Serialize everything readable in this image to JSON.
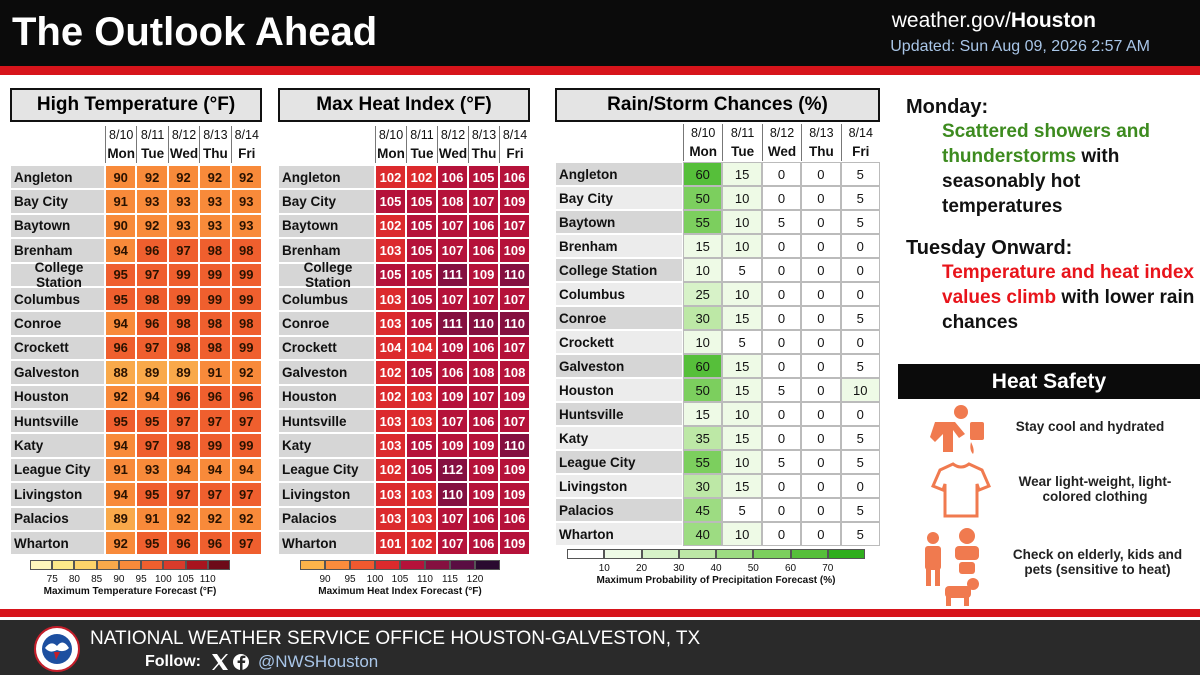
{
  "header": {
    "title": "The Outlook Ahead",
    "site_prefix": "weather.gov/",
    "site_name": "Houston",
    "updated": "Updated: Sun Aug 09, 2026 2:57 AM"
  },
  "tables": [
    {
      "title": "High Temperature (°F)",
      "dates": [
        "8/10",
        "8/11",
        "8/12",
        "8/13",
        "8/14"
      ],
      "days": [
        "Mon",
        "Tue",
        "Wed",
        "Thu",
        "Fri"
      ],
      "text_color": "#2a1200",
      "rows": [
        {
          "name": "Angleton",
          "values": [
            90,
            92,
            92,
            92,
            92
          ]
        },
        {
          "name": "Bay City",
          "values": [
            91,
            93,
            93,
            93,
            93
          ]
        },
        {
          "name": "Baytown",
          "values": [
            90,
            92,
            93,
            93,
            93
          ]
        },
        {
          "name": "Brenham",
          "values": [
            94,
            96,
            97,
            98,
            98
          ]
        },
        {
          "name": "College Station",
          "values": [
            95,
            97,
            99,
            99,
            99
          ]
        },
        {
          "name": "Columbus",
          "values": [
            95,
            98,
            99,
            99,
            99
          ]
        },
        {
          "name": "Conroe",
          "values": [
            94,
            96,
            98,
            98,
            98
          ]
        },
        {
          "name": "Crockett",
          "values": [
            96,
            97,
            98,
            98,
            99
          ]
        },
        {
          "name": "Galveston",
          "values": [
            88,
            89,
            89,
            91,
            92
          ]
        },
        {
          "name": "Houston",
          "values": [
            92,
            94,
            96,
            96,
            96
          ]
        },
        {
          "name": "Huntsville",
          "values": [
            95,
            95,
            97,
            97,
            97
          ]
        },
        {
          "name": "Katy",
          "values": [
            94,
            97,
            98,
            99,
            99
          ]
        },
        {
          "name": "League City",
          "values": [
            91,
            93,
            94,
            94,
            94
          ]
        },
        {
          "name": "Livingston",
          "values": [
            94,
            95,
            97,
            97,
            97
          ]
        },
        {
          "name": "Palacios",
          "values": [
            89,
            91,
            92,
            92,
            92
          ]
        },
        {
          "name": "Wharton",
          "values": [
            92,
            95,
            96,
            96,
            97
          ]
        }
      ],
      "legend": {
        "ticks": [
          75,
          80,
          85,
          90,
          95,
          100,
          105,
          110
        ],
        "colors": [
          "#fff7bc",
          "#fee98a",
          "#fdd36a",
          "#f9a94a",
          "#f88a3a",
          "#ef5f2e",
          "#d93b2b",
          "#a8141e",
          "#6d0a18"
        ],
        "label": "Maximum Temperature Forecast (°F)"
      }
    },
    {
      "title": "Max Heat Index (°F)",
      "dates": [
        "8/10",
        "8/11",
        "8/12",
        "8/13",
        "8/14"
      ],
      "days": [
        "Mon",
        "Tue",
        "Wed",
        "Thu",
        "Fri"
      ],
      "text_color": "#ffffff",
      "rows": [
        {
          "name": "Angleton",
          "values": [
            102,
            102,
            106,
            105,
            106
          ]
        },
        {
          "name": "Bay City",
          "values": [
            105,
            105,
            108,
            107,
            109
          ]
        },
        {
          "name": "Baytown",
          "values": [
            102,
            105,
            107,
            106,
            107
          ]
        },
        {
          "name": "Brenham",
          "values": [
            103,
            105,
            107,
            106,
            109
          ]
        },
        {
          "name": "College Station",
          "values": [
            105,
            105,
            111,
            109,
            110
          ]
        },
        {
          "name": "Columbus",
          "values": [
            103,
            105,
            107,
            107,
            107
          ]
        },
        {
          "name": "Conroe",
          "values": [
            103,
            105,
            111,
            110,
            110
          ]
        },
        {
          "name": "Crockett",
          "values": [
            104,
            104,
            109,
            106,
            107
          ]
        },
        {
          "name": "Galveston",
          "values": [
            102,
            105,
            106,
            108,
            108
          ]
        },
        {
          "name": "Houston",
          "values": [
            102,
            103,
            109,
            107,
            109
          ]
        },
        {
          "name": "Huntsville",
          "values": [
            103,
            103,
            107,
            106,
            107
          ]
        },
        {
          "name": "Katy",
          "values": [
            103,
            105,
            109,
            109,
            110
          ]
        },
        {
          "name": "League City",
          "values": [
            102,
            105,
            112,
            109,
            109
          ]
        },
        {
          "name": "Livingston",
          "values": [
            103,
            103,
            110,
            109,
            109
          ]
        },
        {
          "name": "Palacios",
          "values": [
            103,
            103,
            107,
            106,
            106
          ]
        },
        {
          "name": "Wharton",
          "values": [
            101,
            102,
            107,
            106,
            109
          ]
        }
      ],
      "legend": {
        "ticks": [
          90,
          95,
          100,
          105,
          110,
          115,
          120
        ],
        "colors": [
          "#fdb44a",
          "#fb8c3c",
          "#f0592f",
          "#dc2a2d",
          "#b5123a",
          "#851040",
          "#5a0d42",
          "#2a0a30"
        ],
        "label": "Maximum Heat Index Forecast (°F)"
      }
    },
    {
      "title": "Rain/Storm Chances (%)",
      "dates": [
        "8/10",
        "8/11",
        "8/12",
        "8/13",
        "8/14"
      ],
      "days": [
        "Mon",
        "Tue",
        "Wed",
        "Thu",
        "Fri"
      ],
      "text_color": "#111111",
      "rows": [
        {
          "name": "Angleton",
          "values": [
            60,
            15,
            0,
            0,
            5
          ]
        },
        {
          "name": "Bay City",
          "values": [
            50,
            10,
            0,
            0,
            5
          ]
        },
        {
          "name": "Baytown",
          "values": [
            55,
            10,
            5,
            0,
            5
          ]
        },
        {
          "name": "Brenham",
          "values": [
            15,
            10,
            0,
            0,
            0
          ]
        },
        {
          "name": "College Station",
          "values": [
            10,
            5,
            0,
            0,
            0
          ]
        },
        {
          "name": "Columbus",
          "values": [
            25,
            10,
            0,
            0,
            0
          ]
        },
        {
          "name": "Conroe",
          "values": [
            30,
            15,
            0,
            0,
            5
          ]
        },
        {
          "name": "Crockett",
          "values": [
            10,
            5,
            0,
            0,
            0
          ]
        },
        {
          "name": "Galveston",
          "values": [
            60,
            15,
            0,
            0,
            5
          ]
        },
        {
          "name": "Houston",
          "values": [
            50,
            15,
            5,
            0,
            10
          ]
        },
        {
          "name": "Huntsville",
          "values": [
            15,
            10,
            0,
            0,
            0
          ]
        },
        {
          "name": "Katy",
          "values": [
            35,
            15,
            0,
            0,
            5
          ]
        },
        {
          "name": "League City",
          "values": [
            55,
            10,
            5,
            0,
            5
          ]
        },
        {
          "name": "Livingston",
          "values": [
            30,
            15,
            0,
            0,
            0
          ]
        },
        {
          "name": "Palacios",
          "values": [
            45,
            5,
            0,
            0,
            5
          ]
        },
        {
          "name": "Wharton",
          "values": [
            40,
            10,
            0,
            0,
            5
          ]
        }
      ],
      "legend": {
        "ticks": [
          10,
          20,
          30,
          40,
          50,
          60,
          70
        ],
        "colors": [
          "#ffffff",
          "#eefae6",
          "#d7f2c8",
          "#bde8a6",
          "#9ddc82",
          "#7ccf5e",
          "#56bf3a",
          "#2fae1c"
        ],
        "label": "Maximum Probability of Precipitation Forecast (%)"
      }
    }
  ],
  "outlook": [
    {
      "heading": "Monday:",
      "highlight": "Scattered showers and thunderstorms",
      "highlight_color": "#3d8b1f",
      "rest": "with seasonably hot temperatures"
    },
    {
      "heading": "Tuesday Onward:",
      "highlight": "Temperature and heat index values climb",
      "highlight_color": "#e8141b",
      "rest": "with lower rain chances"
    }
  ],
  "heat_safety": {
    "title": "Heat Safety",
    "items": [
      "Stay cool and hydrated",
      "Wear light-weight, light-colored clothing",
      "Check on elderly, kids and pets (sensitive to heat)"
    ]
  },
  "footer": {
    "office": "NATIONAL WEATHER SERVICE OFFICE HOUSTON-GALVESTON, TX",
    "follow": "Follow:",
    "handle": "@NWSHouston"
  }
}
